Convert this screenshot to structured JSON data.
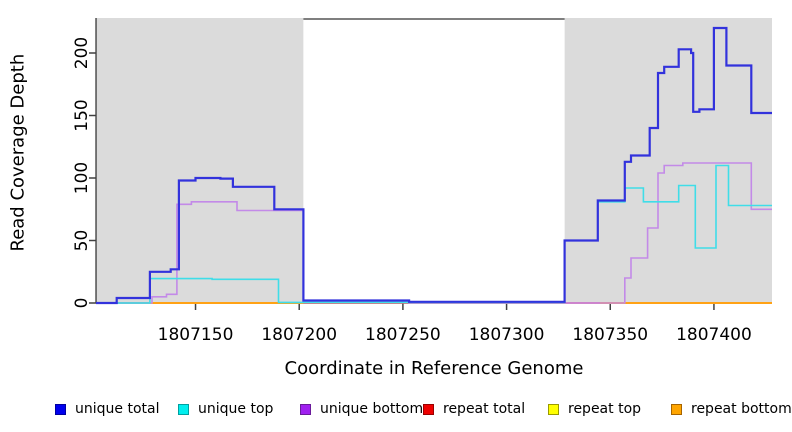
{
  "chart_data": {
    "type": "step-line",
    "title": "",
    "xlabel": "Coordinate in Reference Genome",
    "ylabel": "Read Coverage Depth",
    "xlim": [
      1807102,
      1807428
    ],
    "ylim": [
      0,
      228
    ],
    "x_ticks": [
      1807150,
      1807200,
      1807250,
      1807300,
      1807350,
      1807400
    ],
    "y_ticks": [
      0,
      50,
      100,
      150,
      200
    ],
    "grid": false,
    "legend_position": "bottom",
    "panel_shading_color": "#DBDBDB",
    "shaded_regions": [
      [
        1807102,
        1807202
      ],
      [
        1807328,
        1807428
      ]
    ],
    "gap_top_border_region": [
      1807202,
      1807328
    ],
    "gap_top_border_color": "#7F7F7F",
    "series": [
      {
        "name": "unique total",
        "key": "unique_total",
        "line_color": "#3232DC",
        "width": 2.2,
        "z": 6,
        "steps": [
          [
            1807102,
            0
          ],
          [
            1807112,
            4
          ],
          [
            1807128,
            25
          ],
          [
            1807138,
            27
          ],
          [
            1807142,
            98
          ],
          [
            1807150,
            100
          ],
          [
            1807162,
            99.5
          ],
          [
            1807168,
            93
          ],
          [
            1807188,
            75
          ],
          [
            1807202,
            2
          ],
          [
            1807253,
            1
          ],
          [
            1807328,
            50
          ],
          [
            1807344,
            82
          ],
          [
            1807357,
            113
          ],
          [
            1807360,
            118
          ],
          [
            1807369,
            140
          ],
          [
            1807373,
            184
          ],
          [
            1807376,
            189
          ],
          [
            1807383,
            203
          ],
          [
            1807389,
            200
          ],
          [
            1807390,
            153
          ],
          [
            1807393,
            155
          ],
          [
            1807400,
            220
          ],
          [
            1807406,
            190
          ],
          [
            1807418,
            152
          ],
          [
            1807428,
            152
          ]
        ]
      },
      {
        "name": "unique top",
        "key": "unique_top",
        "line_color": "#3FDDE8",
        "width": 1.6,
        "z": 5,
        "steps": [
          [
            1807102,
            0
          ],
          [
            1807128,
            19.5
          ],
          [
            1807158,
            19
          ],
          [
            1807190,
            0.5
          ],
          [
            1807328,
            50
          ],
          [
            1807344,
            81
          ],
          [
            1807357,
            92
          ],
          [
            1807366,
            81
          ],
          [
            1807383,
            94
          ],
          [
            1807391,
            44
          ],
          [
            1807401,
            110
          ],
          [
            1807407,
            78
          ],
          [
            1807428,
            78
          ]
        ]
      },
      {
        "name": "unique bottom",
        "key": "unique_bottom",
        "line_color": "#C38AE8",
        "width": 1.6,
        "z": 4,
        "steps": [
          [
            1807102,
            0
          ],
          [
            1807129,
            5
          ],
          [
            1807136,
            7
          ],
          [
            1807141,
            79
          ],
          [
            1807148,
            81
          ],
          [
            1807170,
            74
          ],
          [
            1807202,
            1
          ],
          [
            1807253,
            0
          ],
          [
            1807357,
            20
          ],
          [
            1807360,
            36
          ],
          [
            1807368,
            60
          ],
          [
            1807373,
            104
          ],
          [
            1807376,
            110
          ],
          [
            1807385,
            112
          ],
          [
            1807418,
            75
          ],
          [
            1807428,
            75
          ]
        ]
      },
      {
        "name": "repeat total",
        "key": "repeat_total",
        "line_color": "#E84A55",
        "width": 1.8,
        "z": 1,
        "steps": [
          [
            1807102,
            0
          ],
          [
            1807428,
            0
          ]
        ]
      },
      {
        "name": "repeat top",
        "key": "repeat_top",
        "line_color": "#6ADB9B",
        "width": 1.6,
        "z": 2,
        "steps": [
          [
            1807112,
            0
          ],
          [
            1807128,
            0
          ]
        ]
      },
      {
        "name": "repeat bottom",
        "key": "repeat_bottom",
        "line_color": "#FFA215",
        "width": 2.0,
        "z": 3,
        "steps": [
          [
            1807128,
            0
          ],
          [
            1807202,
            null
          ],
          [
            1807345,
            0
          ],
          [
            1807428,
            0
          ]
        ]
      }
    ]
  },
  "legend": {
    "items": [
      {
        "label": "unique total",
        "color": "#0000EE",
        "border": "#0000A0"
      },
      {
        "label": "unique top",
        "color": "#00EEEE",
        "border": "#00A0A0"
      },
      {
        "label": "unique bottom",
        "color": "#A020F0",
        "border": "#6A1B9A"
      },
      {
        "label": "repeat total",
        "color": "#EE0000",
        "border": "#990000"
      },
      {
        "label": "repeat top",
        "color": "#FFFF00",
        "border": "#9A9A00"
      },
      {
        "label": "repeat bottom",
        "color": "#FFA500",
        "border": "#A66400"
      }
    ]
  },
  "axes": {
    "axis_color": "#000000",
    "tick_color": "#404040"
  }
}
